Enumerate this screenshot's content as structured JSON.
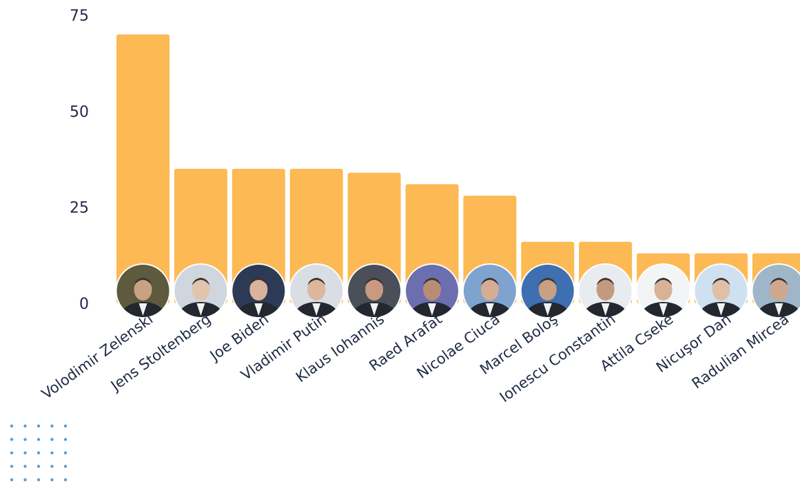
{
  "chart_data": {
    "type": "bar",
    "title": "",
    "xlabel": "",
    "ylabel": "",
    "ylim": [
      0,
      75
    ],
    "yticks": [
      0,
      25,
      50,
      75
    ],
    "grid": false,
    "bar_color": "#FDB954",
    "categories": [
      "Volodimir Zelenski",
      "Jens Stoltenberg",
      "Joe Biden",
      "Vladimir Putin",
      "Klaus Iohannis",
      "Raed Arafat",
      "Nicolae Ciucă",
      "Marcel Boloş",
      "Ionescu Constantin",
      "Attila Cseke",
      "Nicuşor Dan",
      "Radulian Mircea"
    ],
    "values": [
      70,
      35,
      35,
      35,
      34,
      31,
      28,
      16,
      16,
      13,
      13,
      13
    ],
    "decorations": [
      "avatar-photo-per-bar",
      "dot-grid-bottom-left"
    ]
  },
  "colors": {
    "text": "#1f2a44",
    "avatar_ring": "#ffffff",
    "dots": "#5b9bd5"
  }
}
